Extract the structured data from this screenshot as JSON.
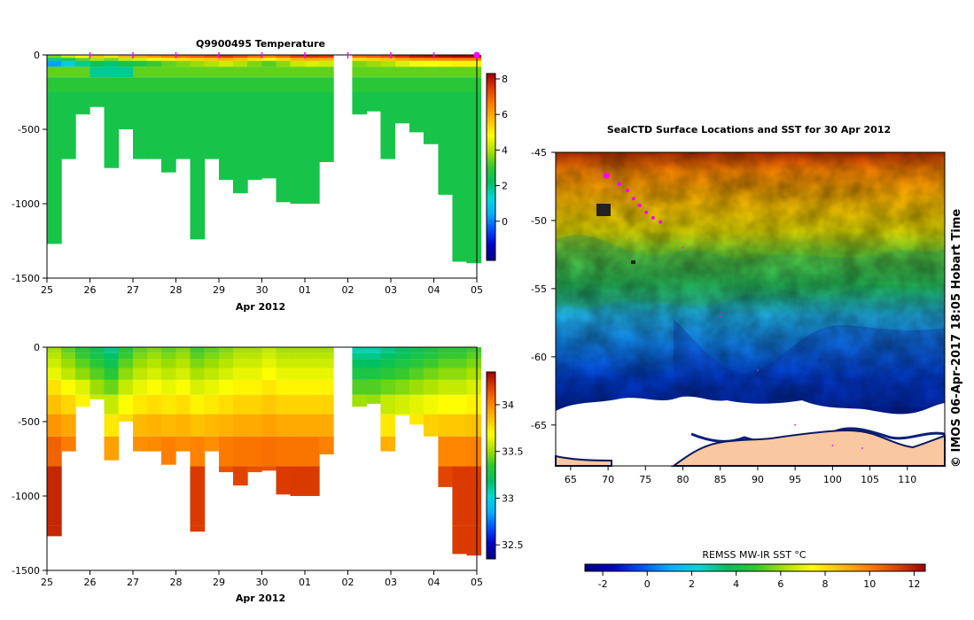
{
  "chart_data": [
    {
      "type": "heatmap",
      "title": "Q9900495  Temperature",
      "xlabel": "Apr 2012",
      "x_ticks": [
        "25",
        "26",
        "27",
        "28",
        "29",
        "30",
        "01",
        "02",
        "03",
        "04",
        "05"
      ],
      "ylim": [
        -1500,
        0
      ],
      "y_ticks": [
        0,
        -500,
        -1000,
        -1500
      ],
      "colorbar": {
        "range": [
          -2.2,
          8.3
        ],
        "ticks": [
          8,
          6,
          4,
          2,
          0
        ]
      },
      "profile_days": [
        25.0,
        25.33,
        25.66,
        26.0,
        26.33,
        26.66,
        27.0,
        27.33,
        27.66,
        28.0,
        28.33,
        28.66,
        29.0,
        29.33,
        29.66,
        30.0,
        30.33,
        30.66,
        31.0,
        31.33,
        32.1,
        32.43,
        32.76,
        33.1,
        33.43,
        33.76,
        34.1,
        34.43,
        34.76
      ],
      "profile_depths": [
        1270,
        700,
        400,
        350,
        760,
        500,
        700,
        700,
        790,
        700,
        1240,
        700,
        840,
        930,
        840,
        830,
        990,
        1000,
        1000,
        720,
        400,
        380,
        700,
        460,
        520,
        600,
        940,
        1390,
        1400
      ],
      "surface_temps": [
        3.5,
        4.2,
        5.0,
        5.6,
        5.2,
        5.8,
        6.0,
        6.3,
        6.6,
        6.8,
        7.0,
        7.2,
        7.5,
        7.2,
        6.8,
        6.5,
        6.9,
        7.4,
        7.6,
        7.5,
        6.8,
        7.0,
        7.2,
        7.6,
        7.9,
        8.0,
        8.1,
        8.2,
        8.2
      ],
      "markers": [
        "26",
        "27",
        "28",
        "29",
        "30",
        "01",
        "02",
        "03",
        "04",
        "05"
      ]
    },
    {
      "type": "heatmap",
      "title": "",
      "xlabel": "Apr 2012",
      "x_ticks": [
        "25",
        "26",
        "27",
        "28",
        "29",
        "30",
        "01",
        "02",
        "03",
        "04",
        "05"
      ],
      "ylim": [
        -1500,
        0
      ],
      "y_ticks": [
        0,
        -500,
        -1000,
        -1500
      ],
      "colorbar": {
        "range": [
          32.35,
          34.35
        ],
        "ticks": [
          34,
          33.5,
          33,
          32.5
        ]
      },
      "surface_salinity": [
        33.5,
        33.4,
        33.3,
        33.2,
        33.1,
        33.3,
        33.4,
        33.45,
        33.4,
        33.45,
        33.35,
        33.4,
        33.45,
        33.5,
        33.5,
        33.55,
        33.5,
        33.5,
        33.5,
        33.5,
        33.05,
        33.05,
        33.1,
        33.15,
        33.2,
        33.25,
        33.3,
        33.3,
        33.35
      ]
    },
    {
      "type": "heatmap",
      "title": "SealCTD Surface Locations and SST for 30 Apr 2012",
      "xlim": [
        63,
        115
      ],
      "ylim": [
        -68,
        -45
      ],
      "x_ticks": [
        65,
        70,
        75,
        80,
        85,
        90,
        95,
        100,
        105,
        110
      ],
      "y_ticks": [
        -45,
        -50,
        -55,
        -60,
        -65
      ],
      "colorbar": {
        "label": "REMSS MW-IR SST °C",
        "range": [
          -2.8,
          12.5
        ],
        "ticks": [
          -2,
          0,
          2,
          4,
          6,
          8,
          10,
          12
        ]
      },
      "track": [
        {
          "lon": 69.8,
          "lat": -46.7
        },
        {
          "lon": 71.5,
          "lat": -47.3
        },
        {
          "lon": 72.6,
          "lat": -47.8
        },
        {
          "lon": 73.4,
          "lat": -48.4
        },
        {
          "lon": 74.2,
          "lat": -48.9
        },
        {
          "lon": 75.1,
          "lat": -49.4
        },
        {
          "lon": 76.0,
          "lat": -49.8
        },
        {
          "lon": 77.0,
          "lat": -50.1
        },
        {
          "lon": 80.0,
          "lat": -52.0
        },
        {
          "lon": 85.0,
          "lat": -57.0
        },
        {
          "lon": 90.0,
          "lat": -61.0
        },
        {
          "lon": 95.0,
          "lat": -65.0
        },
        {
          "lon": 100.0,
          "lat": -66.5
        },
        {
          "lon": 104.0,
          "lat": -66.7
        }
      ]
    }
  ],
  "credit": "©  IMOS 06-Apr-2017 18:05 Hobart Time"
}
